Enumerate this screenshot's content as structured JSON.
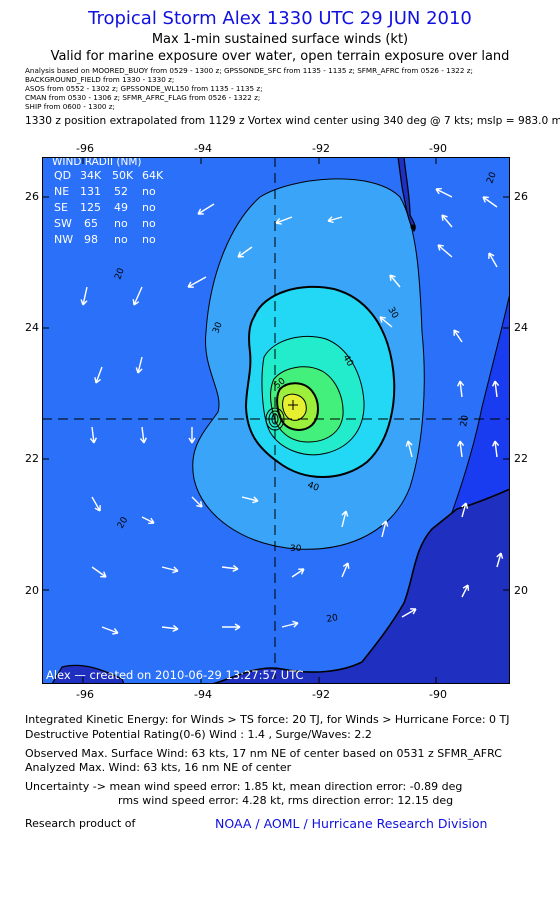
{
  "header": {
    "title": "Tropical Storm Alex 1330 UTC 29 JUN 2010",
    "subtitle": "Max 1-min sustained surface winds (kt)",
    "validity": "Valid for marine exposure over water, open terrain exposure over land"
  },
  "analysis_sources": [
    "Analysis based on   MOORED_BUOY from 0529 - 1300 z;   GPSSONDE_SFC from 1135 - 1135 z;   SFMR_AFRC from 0526 - 1322 z;",
    "BACKGROUND_FIELD from 1330 - 1330 z;",
    "ASOS from 0552 - 1302 z;   GPSSONDE_WL150 from 1135 - 1135 z;",
    "CMAN from 0530 - 1306 z;   SFMR_AFRC_FLAG from 0526 - 1322 z;",
    "SHIP from 0600 - 1300 z;"
  ],
  "position_note": "1330 z position extrapolated from 1129 z Vortex wind center using 340 deg @ 7 kts; mslp = 983.0 mb",
  "map": {
    "lon_labels": [
      "-96",
      "-94",
      "-92",
      "-90"
    ],
    "lat_labels": [
      "26",
      "24",
      "22",
      "20"
    ],
    "lon_range": [
      -96.7,
      -88.7
    ],
    "lat_range": [
      18.6,
      26.7
    ],
    "center": {
      "lon": -92.7,
      "lat": 22.6
    },
    "contour_labels": [
      "20",
      "20",
      "20",
      "20",
      "20",
      "30",
      "30",
      "30",
      "40",
      "40",
      "50"
    ],
    "credit": "Alex — created on 2010-06-29 13:27:57 UTC",
    "colors": {
      "ocean_far": "#1a3cf0",
      "band_20": "#2a70f8",
      "band_30": "#3aa4f8",
      "band_40": "#22d8f4",
      "band_50": "#22eccc",
      "band_55": "#44f07c",
      "band_60": "#9cf03c",
      "band_63": "#e6f030",
      "arrow": "#ffffff",
      "land": "#1f30c0"
    }
  },
  "wind_radii": {
    "title": "WIND RADII (NM)",
    "headers": [
      "QD",
      "34K",
      "50K",
      "64K"
    ],
    "rows": [
      [
        "NE",
        "131",
        "52",
        "no"
      ],
      [
        "SE",
        "125",
        "49",
        "no"
      ],
      [
        "SW",
        "65",
        "no",
        "no"
      ],
      [
        "NW",
        "98",
        "no",
        "no"
      ]
    ]
  },
  "footer": {
    "ike": "Integrated Kinetic Energy:  for Winds > TS force: 20 TJ,  for Winds > Hurricane Force: 0 TJ",
    "dpr": "Destructive Potential Rating(0-6)   Wind : 1.4 ,  Surge/Waves: 2.2",
    "obs_max": "Observed Max. Surface Wind: 63 kts, 17 nm NE of center based on 0531 z SFMR_AFRC",
    "analyzed_max": "Analyzed Max. Wind: 63 kts, 16 nm NE of center",
    "uncertainty": "Uncertainty -> mean wind speed error: 1.85 kt,   mean direction error:  -0.89 deg",
    "rms": "rms wind speed error: 4.28 kt,   rms direction error: 12.15 deg",
    "research": "Research product of",
    "org": "NOAA / AOML / Hurricane Research Division"
  }
}
